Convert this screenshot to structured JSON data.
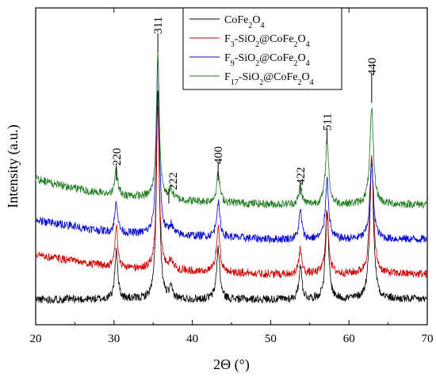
{
  "chart_data": {
    "type": "line",
    "title": "",
    "xlabel": "2Θ (°)",
    "ylabel": "Intensity (a.u.)",
    "xlim": [
      20,
      70
    ],
    "ylim": [
      0,
      100
    ],
    "xticks": [
      20,
      30,
      40,
      50,
      60,
      70
    ],
    "y_tick_labels": false,
    "legend_position": "top-right",
    "peak_labels": [
      {
        "text": "220",
        "x": 30.3
      },
      {
        "text": "311",
        "x": 35.6
      },
      {
        "text": "222",
        "x": 37.0
      },
      {
        "text": "400",
        "x": 43.3
      },
      {
        "text": "422",
        "x": 53.8
      },
      {
        "text": "511",
        "x": 57.2
      },
      {
        "text": "440",
        "x": 62.9
      }
    ],
    "series": [
      {
        "name": "CoFe2O4",
        "legend": {
          "parts": [
            {
              "t": "CoFe"
            },
            {
              "t": "2",
              "sub": true
            },
            {
              "t": "O"
            },
            {
              "t": "4",
              "sub": true
            }
          ]
        },
        "color": "#000000",
        "offset": 4,
        "peak_heights": [
          16,
          66,
          3,
          16,
          11,
          27,
          45
        ],
        "baseline": [
          [
            20,
            4
          ],
          [
            25,
            4
          ],
          [
            30,
            4
          ],
          [
            40,
            4
          ],
          [
            50,
            4
          ],
          [
            60,
            4
          ],
          [
            70,
            4
          ]
        ]
      },
      {
        "name": "F3-SiO2@CoFe2O4",
        "legend": {
          "parts": [
            {
              "t": "F"
            },
            {
              "t": "3",
              "sub": true
            },
            {
              "t": "-SiO"
            },
            {
              "t": "2",
              "sub": true
            },
            {
              "t": "@CoFe"
            },
            {
              "t": "2",
              "sub": true
            },
            {
              "t": "O"
            },
            {
              "t": "4",
              "sub": true
            }
          ]
        },
        "color": "#cc0000",
        "offset": 15,
        "peak_heights": [
          13,
          52,
          3,
          14,
          8,
          20,
          37
        ],
        "baseline": [
          [
            20,
            7
          ],
          [
            25,
            5
          ],
          [
            30,
            3
          ],
          [
            40,
            2
          ],
          [
            50,
            1
          ],
          [
            60,
            1
          ],
          [
            70,
            1
          ]
        ]
      },
      {
        "name": "F9-SiO2@CoFe2O4",
        "legend": {
          "parts": [
            {
              "t": "F"
            },
            {
              "t": "9",
              "sub": true
            },
            {
              "t": "-SiO"
            },
            {
              "t": "2",
              "sub": true
            },
            {
              "t": "@CoFe"
            },
            {
              "t": "2",
              "sub": true
            },
            {
              "t": "O"
            },
            {
              "t": "4",
              "sub": true
            }
          ]
        },
        "color": "#0000cc",
        "offset": 25,
        "peak_heights": [
          10,
          56,
          3,
          11,
          9,
          19,
          24
        ],
        "baseline": [
          [
            20,
            8
          ],
          [
            25,
            6
          ],
          [
            30,
            4
          ],
          [
            40,
            3
          ],
          [
            50,
            2
          ],
          [
            60,
            2
          ],
          [
            70,
            2
          ]
        ]
      },
      {
        "name": "F17-SiO2@CoFe2O4",
        "legend": {
          "parts": [
            {
              "t": "F"
            },
            {
              "t": "17",
              "sub": true
            },
            {
              "t": "-SiO"
            },
            {
              "t": "2",
              "sub": true
            },
            {
              "t": "@CoFe"
            },
            {
              "t": "2",
              "sub": true
            },
            {
              "t": "O"
            },
            {
              "t": "4",
              "sub": true
            }
          ]
        },
        "color": "#1a7a1a",
        "offset": 37,
        "peak_heights": [
          8,
          46,
          3,
          9,
          6,
          20,
          30
        ],
        "baseline": [
          [
            20,
            9
          ],
          [
            25,
            6
          ],
          [
            30,
            4
          ],
          [
            40,
            2
          ],
          [
            50,
            1
          ],
          [
            60,
            1
          ],
          [
            70,
            1
          ]
        ]
      }
    ],
    "peak_positions": [
      30.3,
      35.6,
      37.3,
      43.3,
      53.8,
      57.2,
      62.9
    ],
    "peak_widths": [
      0.22,
      0.22,
      0.25,
      0.25,
      0.22,
      0.25,
      0.28
    ]
  }
}
